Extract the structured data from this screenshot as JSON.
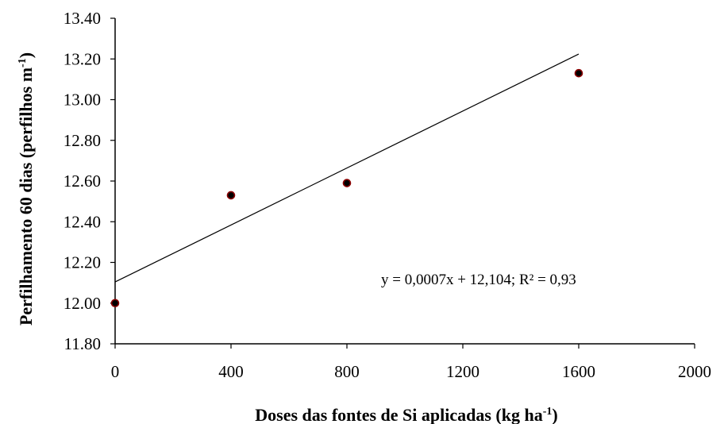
{
  "chart_data": {
    "type": "scatter",
    "xlabel": "Doses das fontes de Si aplicadas (kg ha",
    "xlabel_sup": "-1",
    "xlabel_end": ")",
    "ylabel": "Perfilhamento 60 dias (perfilhos m",
    "ylabel_sup": "-1",
    "ylabel_end": ")",
    "xlim": [
      0,
      2000
    ],
    "ylim": [
      11.8,
      13.4
    ],
    "xticks": [
      0,
      400,
      800,
      1200,
      1600,
      2000
    ],
    "xtick_labels": [
      "0",
      "400",
      "800",
      "1200",
      "1600",
      "2000"
    ],
    "yticks": [
      11.8,
      12.0,
      12.2,
      12.4,
      12.6,
      12.8,
      13.0,
      13.2,
      13.4
    ],
    "ytick_labels": [
      "11.80",
      "12.00",
      "12.20",
      "12.40",
      "12.60",
      "12.80",
      "13.00",
      "13.20",
      "13.40"
    ],
    "grid": false,
    "series": [
      {
        "x": [
          0,
          400,
          800,
          1600
        ],
        "y": [
          12.0,
          12.53,
          12.59,
          13.13
        ],
        "marker_color": "#000000",
        "marker_edge_color": "#8b0000"
      }
    ],
    "trendline": {
      "slope": 0.0007,
      "intercept": 12.104,
      "x_range": [
        0,
        1600
      ],
      "equation_label": "y = 0,0007x + 12,104; R² = 0,93"
    }
  }
}
